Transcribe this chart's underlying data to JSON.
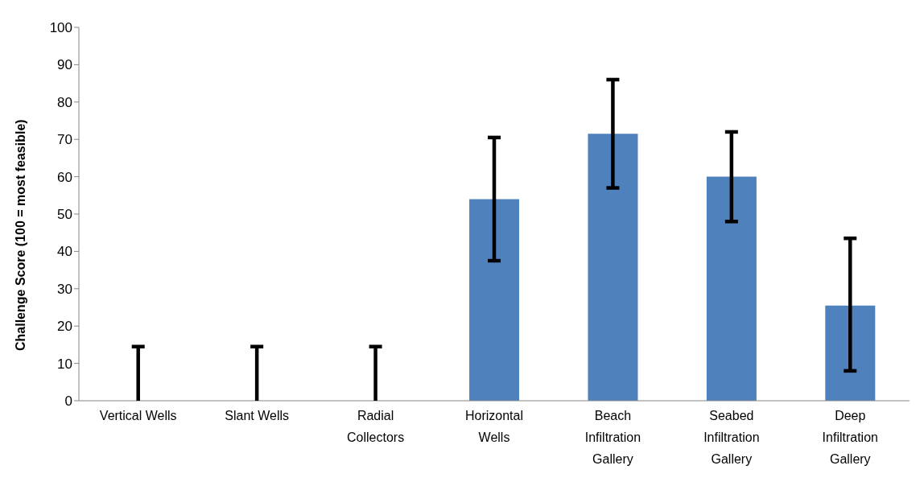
{
  "chart_data": {
    "type": "bar",
    "ylabel": "Challenge Score (100 = most feasible)",
    "categories": [
      "Vertical Wells",
      "Slant Wells",
      "Radial Collectors",
      "Horizontal Wells",
      "Beach Infiltration Gallery",
      "Seabed Infiltration Gallery",
      "Deep Infiltration Gallery"
    ],
    "values": [
      0,
      0,
      0,
      54,
      71.5,
      60,
      25.5
    ],
    "errors": [
      [
        0,
        14.5
      ],
      [
        0,
        14.5
      ],
      [
        0,
        14.5
      ],
      [
        37.5,
        70.5
      ],
      [
        57,
        86
      ],
      [
        48,
        72
      ],
      [
        8,
        43.5
      ]
    ],
    "color": "#4f81bd",
    "ylim": [
      0,
      100
    ],
    "yticks": [
      0,
      10,
      20,
      30,
      40,
      50,
      60,
      70,
      80,
      90,
      100
    ],
    "grid": false,
    "legend": false
  }
}
